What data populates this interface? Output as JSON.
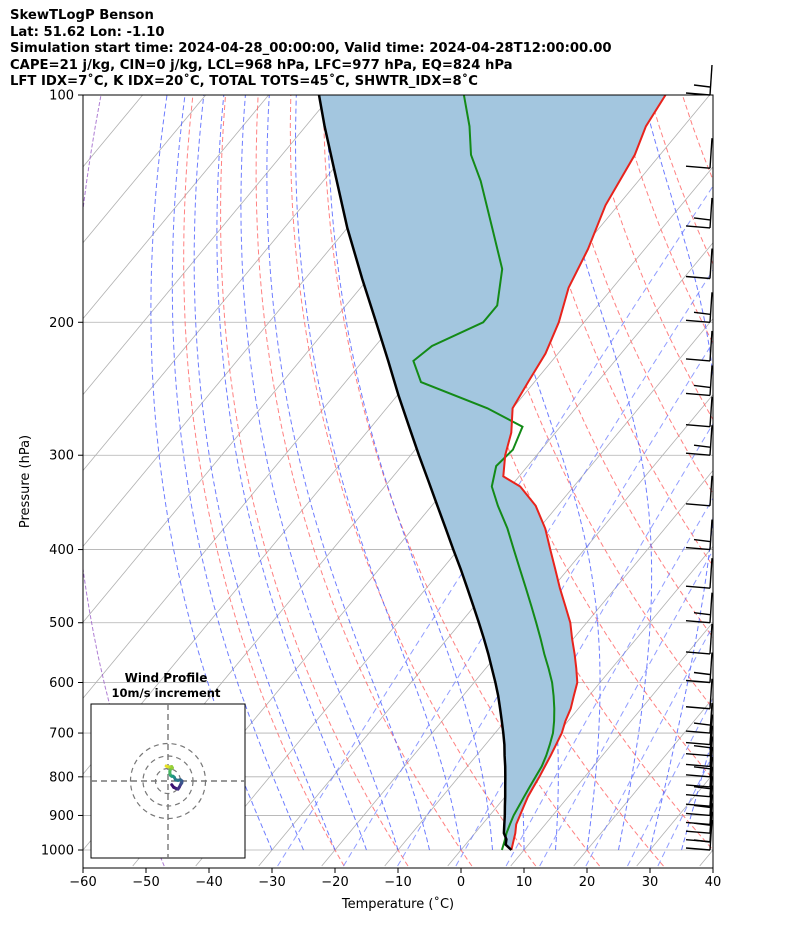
{
  "header": {
    "line1": "SkewTLogP Benson",
    "line2": "Lat: 51.62   Lon: -1.10",
    "line3": "Simulation start time: 2024-04-28_00:00:00, Valid time: 2024-04-28T12:00:00.00",
    "line4": "CAPE=21 j/kg, CIN=0 j/kg, LCL=968 hPa, LFC=977 hPa, EQ=824 hPa",
    "line5": "LFT IDX=7˚C, K IDX=20˚C, TOTAL TOTS=45˚C, SHWTR_IDX=8˚C"
  },
  "chart_data": [
    {
      "type": "line",
      "subtype": "skew-t log-p",
      "xlabel": "Temperature (˚C)",
      "ylabel": "Pressure (hPa)",
      "xlim": [
        -60,
        40
      ],
      "ylim": [
        1050,
        100
      ],
      "y_scale": "log",
      "grid": true,
      "x_ticks": [
        "−60",
        "−50",
        "−40",
        "−30",
        "−20",
        "−10",
        "0",
        "10",
        "20",
        "30",
        "40"
      ],
      "y_ticks": [
        "1000",
        "900",
        "800",
        "700",
        "600",
        "500",
        "400",
        "300",
        "200",
        "100"
      ],
      "colors": {
        "temperature": "#e8231c",
        "dewpoint": "#138a17",
        "parcel": "#000000",
        "cape_fill": "#a3c6df",
        "dry_adiabat": "#ff6b6b",
        "moist_adiabat": "#4a5dff",
        "mixing_ratio": "#6b7bff",
        "skewed_isotherm": "#b0b0b0",
        "sample_adiabat": "#9a5cc8"
      },
      "series": [
        {
          "key": "temperature",
          "points": [
            [
              8,
              1000
            ],
            [
              7.2,
              975
            ],
            [
              6.4,
              950
            ],
            [
              5.4,
              925
            ],
            [
              4.8,
              900
            ],
            [
              4.2,
              875
            ],
            [
              3.6,
              850
            ],
            [
              3.2,
              825
            ],
            [
              2.8,
              800
            ],
            [
              2.3,
              775
            ],
            [
              1.8,
              750
            ],
            [
              1.2,
              725
            ],
            [
              0.6,
              700
            ],
            [
              -0.4,
              675
            ],
            [
              -1.2,
              650
            ],
            [
              -2.4,
              625
            ],
            [
              -3.6,
              600
            ],
            [
              -5.6,
              575
            ],
            [
              -7.8,
              550
            ],
            [
              -10.2,
              525
            ],
            [
              -12.6,
              500
            ],
            [
              -15.6,
              475
            ],
            [
              -18.8,
              450
            ],
            [
              -22.0,
              425
            ],
            [
              -25.4,
              400
            ],
            [
              -29.0,
              375
            ],
            [
              -33.5,
              350
            ],
            [
              -38.5,
              330
            ],
            [
              -42.5,
              320
            ],
            [
              -45.0,
              300
            ],
            [
              -47.0,
              280
            ],
            [
              -50.0,
              260
            ],
            [
              -51.0,
              240
            ],
            [
              -52.0,
              220
            ],
            [
              -54.0,
              200
            ],
            [
              -57.0,
              180
            ],
            [
              -59.0,
              160
            ],
            [
              -62.0,
              140
            ],
            [
              -64.0,
              120
            ],
            [
              -66.0,
              110
            ],
            [
              -67.0,
              100
            ]
          ]
        },
        {
          "key": "dewpoint",
          "points": [
            [
              6.5,
              1000
            ],
            [
              5.8,
              975
            ],
            [
              5.0,
              950
            ],
            [
              4.4,
              925
            ],
            [
              3.8,
              900
            ],
            [
              3.4,
              875
            ],
            [
              3.0,
              850
            ],
            [
              2.6,
              825
            ],
            [
              2.2,
              800
            ],
            [
              1.8,
              775
            ],
            [
              1.1,
              750
            ],
            [
              0.2,
              725
            ],
            [
              -0.8,
              700
            ],
            [
              -2.2,
              675
            ],
            [
              -3.8,
              650
            ],
            [
              -5.6,
              625
            ],
            [
              -7.6,
              600
            ],
            [
              -10.0,
              575
            ],
            [
              -12.6,
              550
            ],
            [
              -15.2,
              525
            ],
            [
              -18.0,
              500
            ],
            [
              -21.0,
              475
            ],
            [
              -24.2,
              450
            ],
            [
              -27.6,
              425
            ],
            [
              -31.2,
              400
            ],
            [
              -35.0,
              375
            ],
            [
              -39.5,
              350
            ],
            [
              -43.0,
              330
            ],
            [
              -45.0,
              310
            ],
            [
              -44.5,
              295
            ],
            [
              -46.0,
              275
            ],
            [
              -54.0,
              260
            ],
            [
              -68.0,
              240
            ],
            [
              -72.0,
              225
            ],
            [
              -71.0,
              215
            ],
            [
              -66.0,
              200
            ],
            [
              -66.0,
              190
            ],
            [
              -70.0,
              170
            ],
            [
              -77.0,
              150
            ],
            [
              -85.0,
              130
            ],
            [
              -90.0,
              120
            ],
            [
              -94.0,
              110
            ],
            [
              -99.0,
              100
            ]
          ]
        },
        {
          "key": "parcel",
          "points": [
            [
              8.0,
              1000
            ],
            [
              6.4,
              984
            ],
            [
              5.8,
              968
            ],
            [
              4.6,
              950
            ],
            [
              3.5,
              925
            ],
            [
              2.4,
              900
            ],
            [
              1.2,
              875
            ],
            [
              0.0,
              850
            ],
            [
              -1.3,
              825
            ],
            [
              -2.6,
              800
            ],
            [
              -4.0,
              775
            ],
            [
              -5.5,
              750
            ],
            [
              -7.0,
              725
            ],
            [
              -8.7,
              700
            ],
            [
              -10.5,
              675
            ],
            [
              -12.4,
              650
            ],
            [
              -14.4,
              625
            ],
            [
              -16.6,
              600
            ],
            [
              -19.0,
              575
            ],
            [
              -21.5,
              550
            ],
            [
              -24.2,
              525
            ],
            [
              -27.1,
              500
            ],
            [
              -30.2,
              475
            ],
            [
              -33.5,
              450
            ],
            [
              -37.0,
              425
            ],
            [
              -40.8,
              400
            ],
            [
              -44.8,
              375
            ],
            [
              -49.1,
              350
            ],
            [
              -53.7,
              325
            ],
            [
              -58.7,
              300
            ],
            [
              -64.0,
              275
            ],
            [
              -69.8,
              250
            ],
            [
              -76.0,
              225
            ],
            [
              -83.0,
              200
            ],
            [
              -91.0,
              175
            ],
            [
              -100.0,
              150
            ],
            [
              -110.0,
              125
            ],
            [
              -117.0,
              110
            ],
            [
              -122.0,
              100
            ]
          ]
        }
      ],
      "cape_fill": true,
      "wind_barbs": true
    },
    {
      "type": "scatter",
      "subtype": "hodograph",
      "title": "Wind Profile",
      "subtitle": "10m/s increment",
      "rings": [
        10,
        20,
        30
      ],
      "points": [
        [
          3.0,
          -3.0
        ],
        [
          4.5,
          -5.0
        ],
        [
          6.5,
          -6.0
        ],
        [
          8.0,
          -6.5
        ],
        [
          9.0,
          -5.0
        ],
        [
          10.0,
          -3.0
        ],
        [
          11.0,
          -1.5
        ],
        [
          11.2,
          0.0
        ],
        [
          10.0,
          1.0
        ],
        [
          8.0,
          0.5
        ],
        [
          6.0,
          1.0
        ],
        [
          5.0,
          3.0
        ],
        [
          4.0,
          3.8
        ],
        [
          3.0,
          3.8
        ],
        [
          2.0,
          4.5
        ],
        [
          1.5,
          6.0
        ],
        [
          1.5,
          8.0
        ],
        [
          2.0,
          9.5
        ],
        [
          3.5,
          10.5
        ],
        [
          3.0,
          11.5
        ],
        [
          1.0,
          11.2
        ],
        [
          -0.5,
          11.5
        ],
        [
          -1.5,
          12.0
        ]
      ]
    }
  ]
}
